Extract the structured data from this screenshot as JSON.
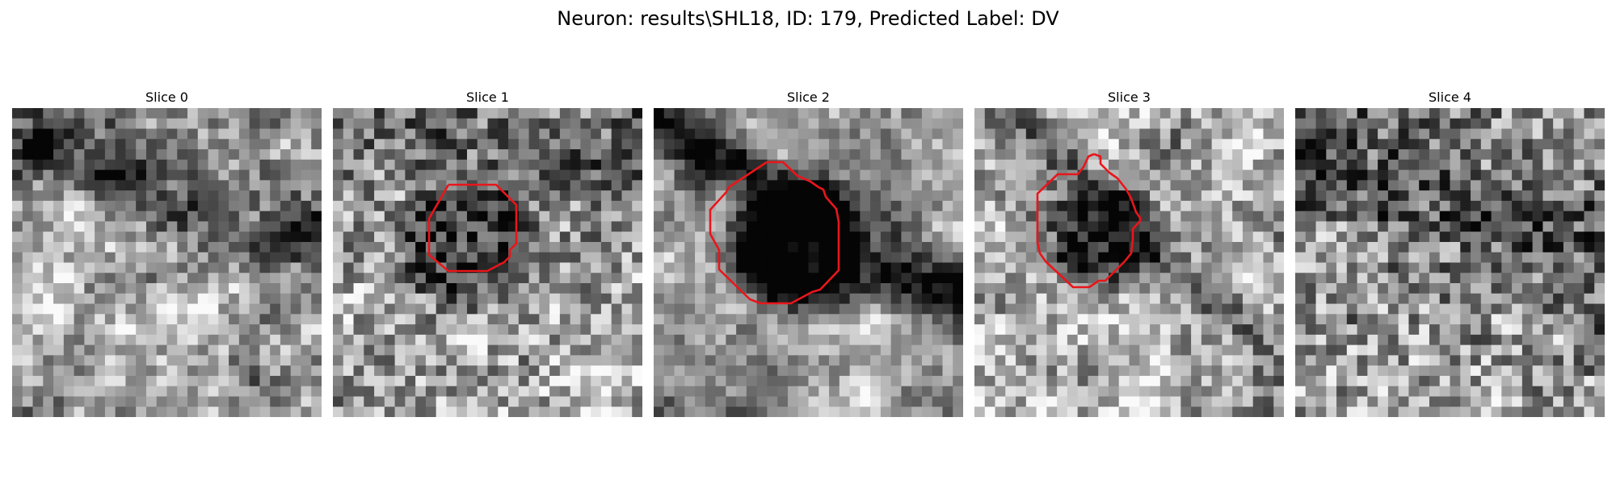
{
  "figure": {
    "title": "Neuron: results\\SHL18, ID: 179, Predicted Label: DV",
    "panels": [
      {
        "title": "Slice 0",
        "has_contour": false,
        "contour_color": "#e8161b"
      },
      {
        "title": "Slice 1",
        "has_contour": true,
        "contour_color": "#e8161b"
      },
      {
        "title": "Slice 2",
        "has_contour": true,
        "contour_color": "#e8161b"
      },
      {
        "title": "Slice 3",
        "has_contour": true,
        "contour_color": "#e8161b"
      },
      {
        "title": "Slice 4",
        "has_contour": false,
        "contour_color": "#e8161b"
      }
    ]
  }
}
